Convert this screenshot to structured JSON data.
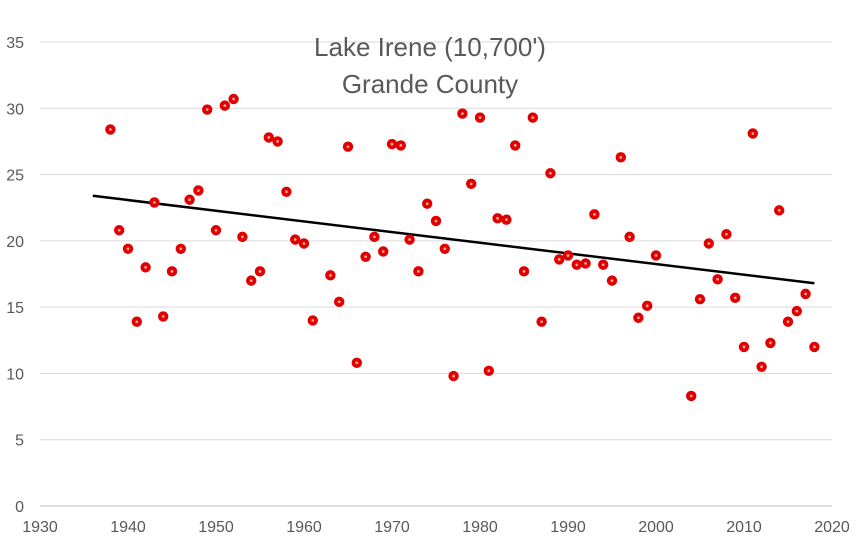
{
  "chart_data": {
    "type": "scatter",
    "title": "Lake Irene (10,700')",
    "subtitle": "Grande County",
    "xlabel": "",
    "ylabel": "",
    "xlim": [
      1930,
      2020
    ],
    "ylim": [
      0,
      35
    ],
    "xticks": [
      1930,
      1940,
      1950,
      1960,
      1970,
      1980,
      1990,
      2000,
      2010,
      2020
    ],
    "yticks": [
      0,
      5,
      10,
      15,
      20,
      25,
      30,
      35
    ],
    "grid": true,
    "legend": "none",
    "colors": {
      "point": "#e00000",
      "trend": "#000000"
    },
    "trendline": {
      "x": [
        1936,
        2018
      ],
      "y": [
        23.4,
        16.8
      ]
    },
    "points": [
      {
        "x": 1938,
        "y": 28.4
      },
      {
        "x": 1939,
        "y": 20.8
      },
      {
        "x": 1940,
        "y": 19.4
      },
      {
        "x": 1941,
        "y": 13.9
      },
      {
        "x": 1942,
        "y": 18.0
      },
      {
        "x": 1943,
        "y": 22.9
      },
      {
        "x": 1944,
        "y": 14.3
      },
      {
        "x": 1945,
        "y": 17.7
      },
      {
        "x": 1946,
        "y": 19.4
      },
      {
        "x": 1947,
        "y": 23.1
      },
      {
        "x": 1948,
        "y": 23.8
      },
      {
        "x": 1949,
        "y": 29.9
      },
      {
        "x": 1950,
        "y": 20.8
      },
      {
        "x": 1951,
        "y": 30.2
      },
      {
        "x": 1952,
        "y": 30.7
      },
      {
        "x": 1953,
        "y": 20.3
      },
      {
        "x": 1954,
        "y": 17.0
      },
      {
        "x": 1955,
        "y": 17.7
      },
      {
        "x": 1956,
        "y": 27.8
      },
      {
        "x": 1957,
        "y": 27.5
      },
      {
        "x": 1958,
        "y": 23.7
      },
      {
        "x": 1959,
        "y": 20.1
      },
      {
        "x": 1960,
        "y": 19.8
      },
      {
        "x": 1961,
        "y": 14.0
      },
      {
        "x": 1963,
        "y": 17.4
      },
      {
        "x": 1964,
        "y": 15.4
      },
      {
        "x": 1965,
        "y": 27.1
      },
      {
        "x": 1966,
        "y": 10.8
      },
      {
        "x": 1967,
        "y": 18.8
      },
      {
        "x": 1968,
        "y": 20.3
      },
      {
        "x": 1969,
        "y": 19.2
      },
      {
        "x": 1970,
        "y": 27.3
      },
      {
        "x": 1971,
        "y": 27.2
      },
      {
        "x": 1972,
        "y": 20.1
      },
      {
        "x": 1973,
        "y": 17.7
      },
      {
        "x": 1974,
        "y": 22.8
      },
      {
        "x": 1975,
        "y": 21.5
      },
      {
        "x": 1976,
        "y": 19.4
      },
      {
        "x": 1977,
        "y": 9.8
      },
      {
        "x": 1978,
        "y": 29.6
      },
      {
        "x": 1979,
        "y": 24.3
      },
      {
        "x": 1980,
        "y": 29.3
      },
      {
        "x": 1981,
        "y": 10.2
      },
      {
        "x": 1982,
        "y": 21.7
      },
      {
        "x": 1983,
        "y": 21.6
      },
      {
        "x": 1984,
        "y": 27.2
      },
      {
        "x": 1985,
        "y": 17.7
      },
      {
        "x": 1986,
        "y": 29.3
      },
      {
        "x": 1987,
        "y": 13.9
      },
      {
        "x": 1988,
        "y": 25.1
      },
      {
        "x": 1989,
        "y": 18.6
      },
      {
        "x": 1990,
        "y": 18.9
      },
      {
        "x": 1991,
        "y": 18.2
      },
      {
        "x": 1992,
        "y": 18.3
      },
      {
        "x": 1993,
        "y": 22.0
      },
      {
        "x": 1994,
        "y": 18.2
      },
      {
        "x": 1995,
        "y": 17.0
      },
      {
        "x": 1996,
        "y": 26.3
      },
      {
        "x": 1997,
        "y": 20.3
      },
      {
        "x": 1998,
        "y": 14.2
      },
      {
        "x": 1999,
        "y": 15.1
      },
      {
        "x": 2000,
        "y": 18.9
      },
      {
        "x": 2004,
        "y": 8.3
      },
      {
        "x": 2005,
        "y": 15.6
      },
      {
        "x": 2006,
        "y": 19.8
      },
      {
        "x": 2007,
        "y": 17.1
      },
      {
        "x": 2008,
        "y": 20.5
      },
      {
        "x": 2009,
        "y": 15.7
      },
      {
        "x": 2010,
        "y": 12.0
      },
      {
        "x": 2011,
        "y": 28.1
      },
      {
        "x": 2012,
        "y": 10.5
      },
      {
        "x": 2013,
        "y": 12.3
      },
      {
        "x": 2014,
        "y": 22.3
      },
      {
        "x": 2015,
        "y": 13.9
      },
      {
        "x": 2016,
        "y": 14.7
      },
      {
        "x": 2017,
        "y": 16.0
      },
      {
        "x": 2018,
        "y": 12.0
      }
    ]
  }
}
